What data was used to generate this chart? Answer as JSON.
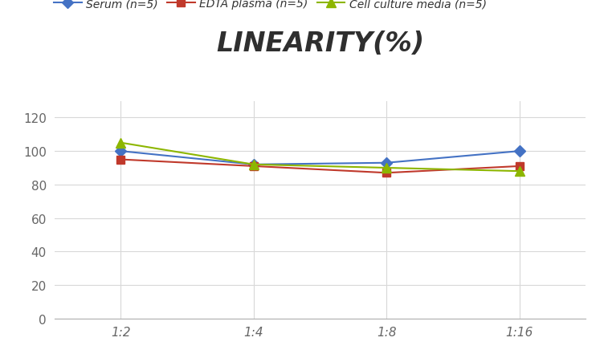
{
  "title": "LINEARITY(%)",
  "x_labels": [
    "1:2",
    "1:4",
    "1:8",
    "1:16"
  ],
  "x_positions": [
    0,
    1,
    2,
    3
  ],
  "series": [
    {
      "label": "Serum (n=5)",
      "values": [
        100,
        92,
        93,
        100
      ],
      "color": "#4472C4",
      "marker": "D",
      "markersize": 7
    },
    {
      "label": "EDTA plasma (n=5)",
      "values": [
        95,
        91,
        87,
        91
      ],
      "color": "#C0392B",
      "marker": "s",
      "markersize": 7
    },
    {
      "label": "Cell culture media (n=5)",
      "values": [
        105,
        92,
        90,
        88
      ],
      "color": "#8DB600",
      "marker": "^",
      "markersize": 8
    }
  ],
  "ylim": [
    0,
    130
  ],
  "yticks": [
    0,
    20,
    40,
    60,
    80,
    100,
    120
  ],
  "background_color": "#FFFFFF",
  "grid_color": "#D8D8D8",
  "title_fontsize": 24,
  "legend_fontsize": 10,
  "tick_fontsize": 11,
  "tick_color": "#A0A0A0"
}
